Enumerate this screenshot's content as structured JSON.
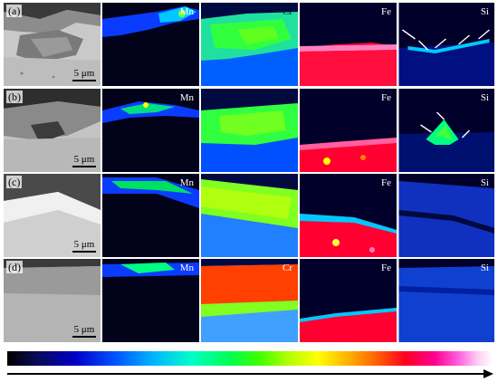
{
  "rows": [
    {
      "label": "(a)",
      "scale": "5 μm"
    },
    {
      "label": "(b)",
      "scale": "5 μm"
    },
    {
      "label": "(c)",
      "scale": "5 μm"
    },
    {
      "label": "(d)",
      "scale": "5 μm"
    }
  ],
  "elements": {
    "mn": "Mn",
    "cr": "Cr",
    "fe": "Fe",
    "si": "Si"
  },
  "colormap": [
    "#000000",
    "#0000c8",
    "#00b4ff",
    "#00ff50",
    "#ffff00",
    "#ff0020",
    "#ffffff"
  ]
}
